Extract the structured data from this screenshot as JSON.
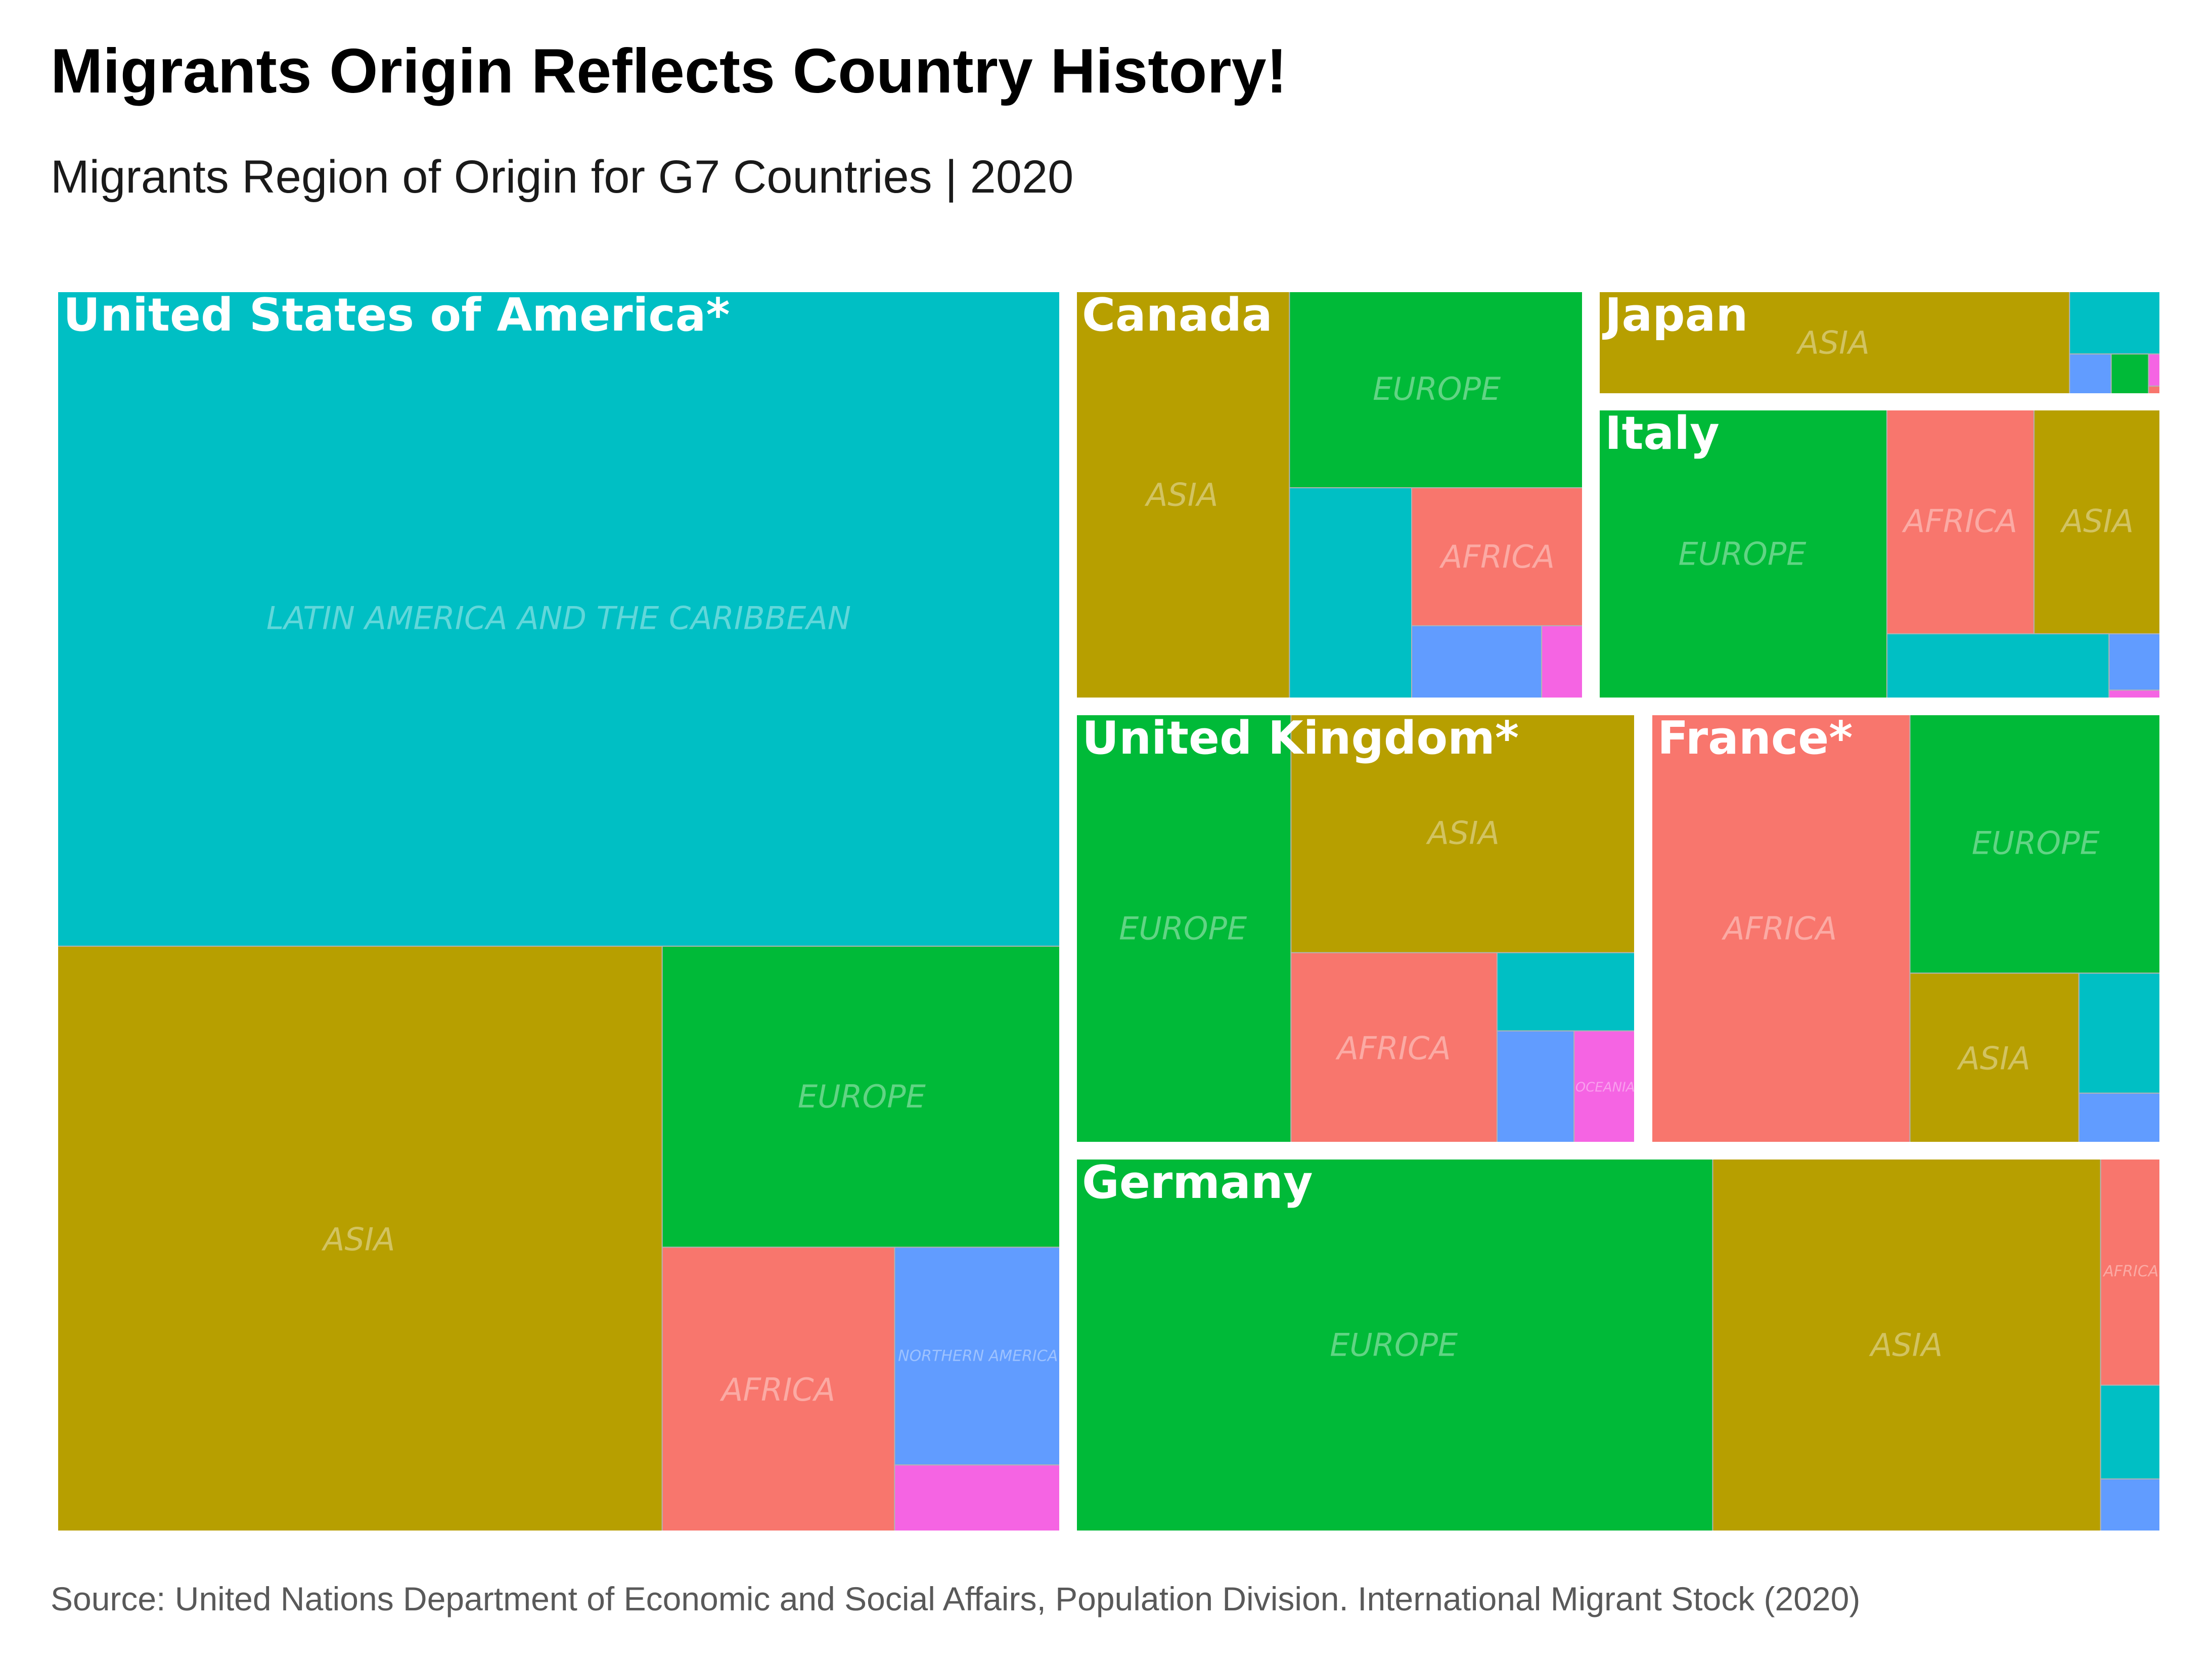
{
  "title": "Migrants Origin Reflects Country History!",
  "subtitle": "Migrants Region of Origin for G7 Countries | 2020",
  "caption": "Source: United Nations Department of Economic and Social Affairs, Population Division. International Migrant Stock (2020)",
  "colors": {
    "AFRICA": "#F8766D",
    "ASIA": "#B79F00",
    "EUROPE": "#00BA38",
    "LATIN AMERICA AND THE CARIBBEAN": "#00BFC4",
    "NORTHERN AMERICA": "#619CFF",
    "OCEANIA": "#F564E3"
  },
  "chart_data": {
    "type": "treemap",
    "legend": "none",
    "countries": [
      {
        "name": "United States of America*",
        "regions": [
          {
            "region": "LATIN AMERICA AND THE CARIBBEAN",
            "label": "LATIN AMERICA AND THE CARIBBEAN",
            "share": 0.527
          },
          {
            "region": "ASIA",
            "label": "ASIA",
            "share": 0.284
          },
          {
            "region": "EUROPE",
            "label": "EUROPE",
            "share": 0.096
          },
          {
            "region": "AFRICA",
            "label": "AFRICA",
            "share": 0.053
          },
          {
            "region": "NORTHERN AMERICA",
            "label": "NORTHERN AMERICA",
            "share": 0.029
          },
          {
            "region": "OCEANIA",
            "label": "",
            "share": 0.009
          }
        ]
      },
      {
        "name": "Canada",
        "regions": [
          {
            "region": "ASIA",
            "label": "ASIA",
            "share": 0.421
          },
          {
            "region": "EUROPE",
            "label": "EUROPE",
            "share": 0.279
          },
          {
            "region": "LATIN AMERICA AND THE CARIBBEAN",
            "label": "",
            "share": 0.124
          },
          {
            "region": "AFRICA",
            "label": "AFRICA",
            "share": 0.114
          },
          {
            "region": "NORTHERN AMERICA",
            "label": "",
            "share": 0.046
          },
          {
            "region": "OCEANIA",
            "label": "",
            "share": 0.015
          }
        ]
      },
      {
        "name": "Japan",
        "regions": [
          {
            "region": "ASIA",
            "label": "ASIA",
            "share": 0.837
          },
          {
            "region": "LATIN AMERICA AND THE CARIBBEAN",
            "label": "",
            "share": 0.099
          },
          {
            "region": "NORTHERN AMERICA",
            "label": "",
            "share": 0.029
          },
          {
            "region": "EUROPE",
            "label": "",
            "share": 0.026
          },
          {
            "region": "OCEANIA",
            "label": "",
            "share": 0.007
          },
          {
            "region": "AFRICA",
            "label": "",
            "share": 0.002
          }
        ]
      },
      {
        "name": "Italy",
        "regions": [
          {
            "region": "EUROPE",
            "label": "EUROPE",
            "share": 0.513
          },
          {
            "region": "AFRICA",
            "label": "AFRICA",
            "share": 0.202
          },
          {
            "region": "ASIA",
            "label": "ASIA",
            "share": 0.175
          },
          {
            "region": "LATIN AMERICA AND THE CARIBBEAN",
            "label": "",
            "share": 0.089
          },
          {
            "region": "NORTHERN AMERICA",
            "label": "",
            "share": 0.018
          },
          {
            "region": "OCEANIA",
            "label": "",
            "share": 0.003
          }
        ]
      },
      {
        "name": "United Kingdom*",
        "regions": [
          {
            "region": "EUROPE",
            "label": "EUROPE",
            "share": 0.385
          },
          {
            "region": "ASIA",
            "label": "ASIA",
            "share": 0.342
          },
          {
            "region": "AFRICA",
            "label": "AFRICA",
            "share": 0.163
          },
          {
            "region": "LATIN AMERICA AND THE CARIBBEAN",
            "label": "",
            "share": 0.045
          },
          {
            "region": "NORTHERN AMERICA",
            "label": "",
            "share": 0.036
          },
          {
            "region": "OCEANIA",
            "label": "OCEANIA",
            "share": 0.029
          }
        ]
      },
      {
        "name": "France*",
        "regions": [
          {
            "region": "AFRICA",
            "label": "AFRICA",
            "share": 0.508
          },
          {
            "region": "EUROPE",
            "label": "EUROPE",
            "share": 0.297
          },
          {
            "region": "ASIA",
            "label": "ASIA",
            "share": 0.131
          },
          {
            "region": "LATIN AMERICA AND THE CARIBBEAN",
            "label": "",
            "share": 0.045
          },
          {
            "region": "NORTHERN AMERICA",
            "label": "",
            "share": 0.019
          }
        ]
      },
      {
        "name": "Germany",
        "regions": [
          {
            "region": "EUROPE",
            "label": "EUROPE",
            "share": 0.587
          },
          {
            "region": "ASIA",
            "label": "ASIA",
            "share": 0.357
          },
          {
            "region": "AFRICA",
            "label": "AFRICA",
            "share": 0.034
          },
          {
            "region": "LATIN AMERICA AND THE CARIBBEAN",
            "label": "",
            "share": 0.014
          },
          {
            "region": "NORTHERN AMERICA",
            "label": "",
            "share": 0.008
          }
        ]
      }
    ]
  }
}
